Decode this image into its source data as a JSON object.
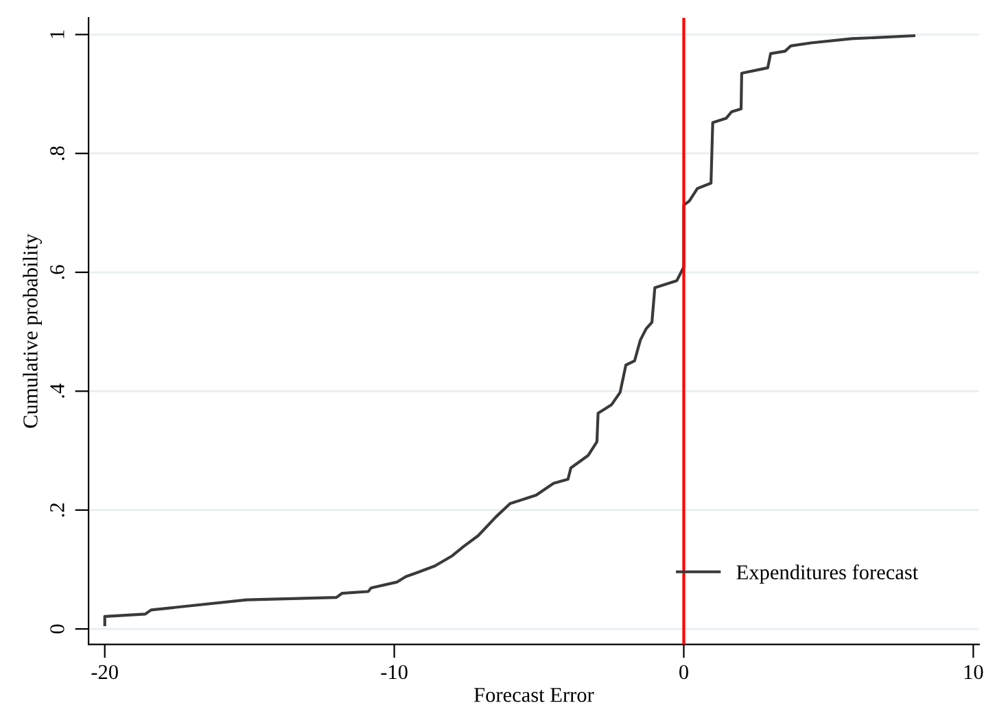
{
  "chart_data": {
    "type": "line",
    "xlabel": "Forecast Error",
    "ylabel": "Cumulative probability",
    "xlim": [
      -20.56,
      10.2
    ],
    "ylim": [
      -0.026,
      1.028
    ],
    "xticks": [
      -20,
      -10,
      0,
      10
    ],
    "yticks": [
      0,
      {
        "value": 0.2,
        "label": ".2"
      },
      {
        "value": 0.4,
        "label": ".4"
      },
      {
        "value": 0.6,
        "label": ".6"
      },
      {
        "value": 0.8,
        "label": ".8"
      },
      1
    ],
    "grid": "y",
    "legend": "bottom right",
    "line_style": "solid",
    "marker": "none",
    "ref_lines": [
      {
        "axis": "x",
        "value": 0,
        "color": "#ff0000",
        "line_style": "solid"
      }
    ],
    "series": [
      {
        "name": "Expenditures forecast",
        "color": "#3a3a3a",
        "x": [
          -20,
          -20,
          -18.6,
          -18.4,
          -15.1,
          -12,
          -11.8,
          -10.9,
          -10.8,
          -9.9,
          -9.6,
          -9.2,
          -8.6,
          -8.0,
          -7.6,
          -7.1,
          -6.5,
          -6.0,
          -5.1,
          -4.5,
          -4.0,
          -3.9,
          -3.3,
          -3.0,
          -2.96,
          -2.5,
          -2.2,
          -2.0,
          -1.7,
          -1.5,
          -1.3,
          -1.1,
          -1.0,
          -0.24,
          0,
          0,
          0.19,
          0.47,
          0.94,
          1.0,
          1.46,
          1.65,
          1.98,
          2.0,
          2.9,
          3.0,
          3.5,
          3.7,
          4.4,
          5.8,
          7.95
        ],
        "values": [
          0.007,
          0.021,
          0.025,
          0.032,
          0.049,
          0.053,
          0.06,
          0.063,
          0.069,
          0.079,
          0.088,
          0.095,
          0.106,
          0.123,
          0.139,
          0.157,
          0.188,
          0.211,
          0.225,
          0.245,
          0.252,
          0.271,
          0.292,
          0.315,
          0.363,
          0.377,
          0.398,
          0.444,
          0.451,
          0.486,
          0.505,
          0.516,
          0.574,
          0.586,
          0.609,
          0.713,
          0.72,
          0.741,
          0.75,
          0.852,
          0.859,
          0.87,
          0.875,
          0.935,
          0.944,
          0.968,
          0.972,
          0.981,
          0.986,
          0.993,
          0.998
        ]
      }
    ]
  }
}
